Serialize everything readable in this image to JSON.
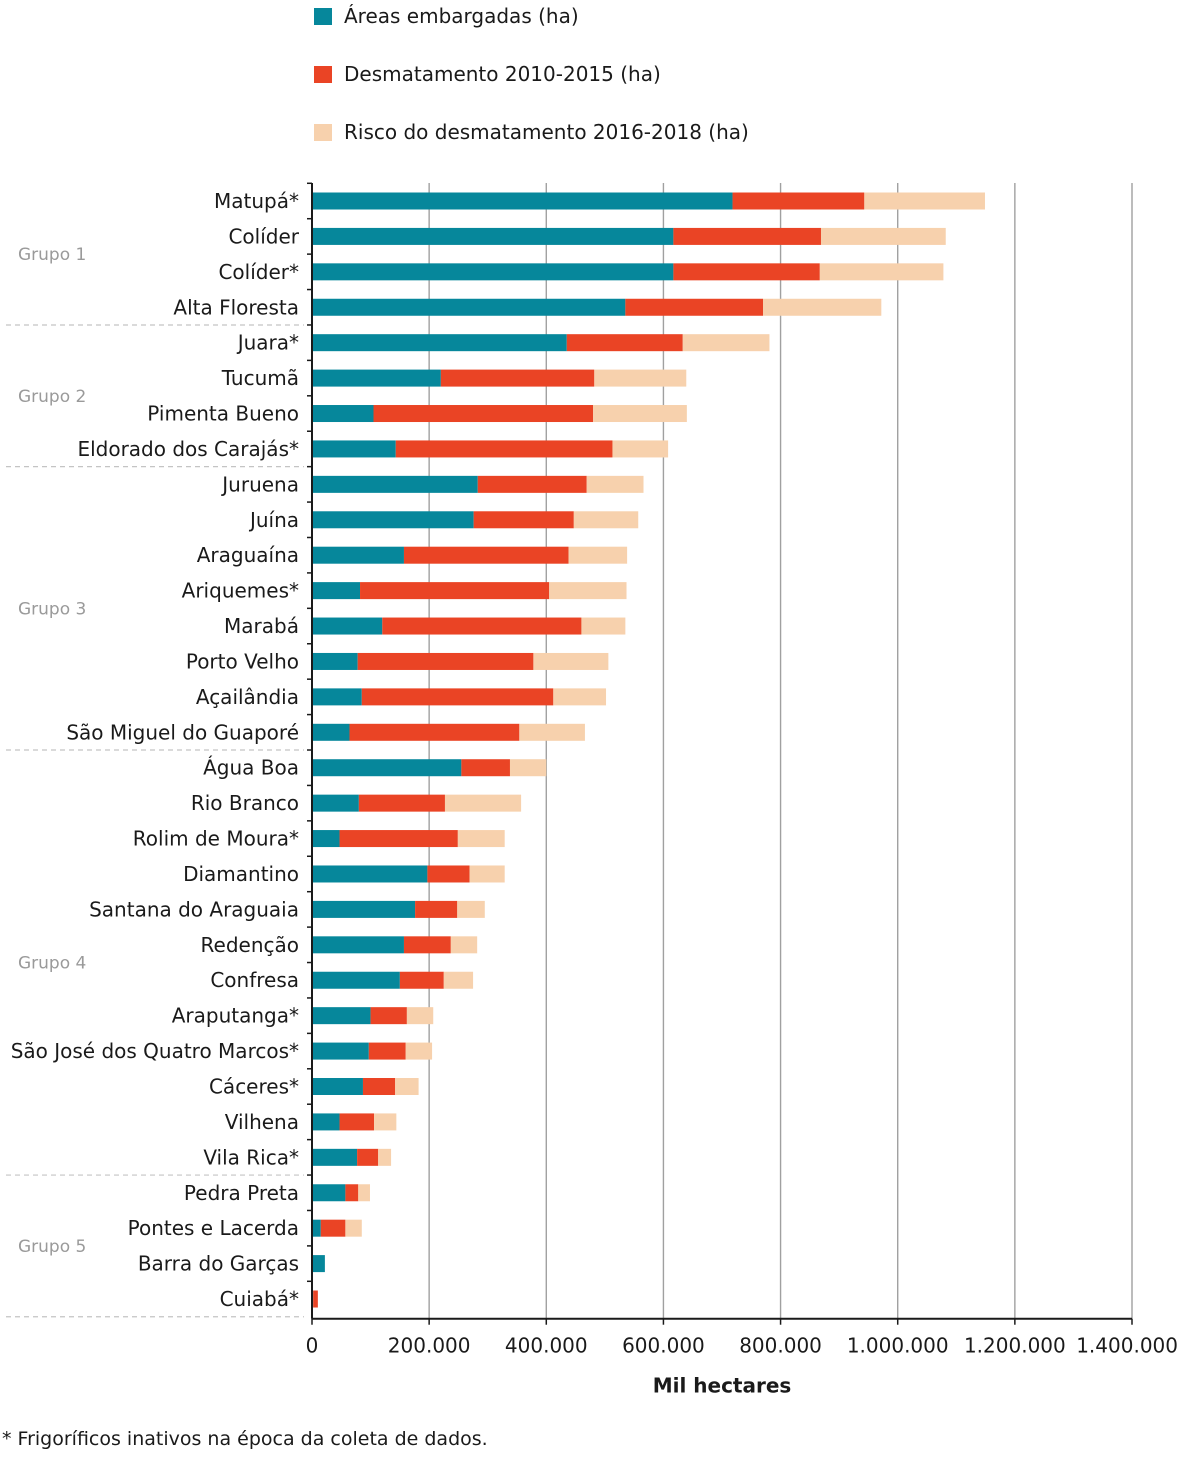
{
  "chart_data": {
    "type": "bar",
    "orientation": "horizontal",
    "stacked": true,
    "title": "",
    "xlabel": "Mil hectares",
    "ylabel": "",
    "xlim": [
      0,
      1400000
    ],
    "xticks": [
      0,
      200000,
      400000,
      600000,
      800000,
      1000000,
      1200000,
      1400000
    ],
    "xtick_labels": [
      "0",
      "200.000",
      "400.000",
      "600.000",
      "800.000",
      "1.000.000",
      "1.200.000",
      "1.400.000"
    ],
    "grid": "vertical",
    "legend_position": "top",
    "categories": [
      "Matupá*",
      "Colíder",
      "Colíder*",
      "Alta Floresta",
      "Juara*",
      "Tucumã",
      "Pimenta Bueno",
      "Eldorado dos Carajás*",
      "Juruena",
      "Juína",
      "Araguaína",
      "Ariquemes*",
      "Marabá",
      "Porto Velho",
      "Açailândia",
      "São Miguel do Guaporé",
      "Água Boa",
      "Rio Branco",
      "Rolim de Moura*",
      "Diamantino",
      "Santana do Araguaia",
      "Redenção",
      "Confresa",
      "Araputanga*",
      "São José dos Quatro Marcos*",
      "Cáceres*",
      "Vilhena",
      "Vila Rica*",
      "Pedra Preta",
      "Pontes e Lacerda",
      "Barra do Garças",
      "Cuiabá*"
    ],
    "series": [
      {
        "name": "Áreas embargadas (ha)",
        "color": "#06879b",
        "values": [
          718000,
          617000,
          617000,
          535000,
          435000,
          220000,
          105000,
          143000,
          283000,
          276000,
          157000,
          82000,
          120000,
          78000,
          85000,
          64000,
          255000,
          80000,
          47000,
          197000,
          176000,
          157000,
          150000,
          100000,
          97000,
          87000,
          47000,
          77000,
          57000,
          15000,
          22000,
          2000
        ]
      },
      {
        "name": "Desmatamento 2010-2015 (ha)",
        "color": "#ea4425",
        "values": [
          225000,
          252000,
          250000,
          235000,
          198000,
          262000,
          375000,
          370000,
          186000,
          171000,
          281000,
          323000,
          340000,
          300000,
          327000,
          290000,
          83000,
          147000,
          202000,
          72000,
          72000,
          80000,
          75000,
          62000,
          63000,
          55000,
          59000,
          36000,
          22000,
          42000,
          0,
          8000
        ]
      },
      {
        "name": "Risco do desmatamento 2016-2018 (ha)",
        "color": "#f7d1ad",
        "values": [
          206000,
          213000,
          211000,
          202000,
          148000,
          157000,
          160000,
          95000,
          97000,
          110000,
          100000,
          132000,
          75000,
          128000,
          90000,
          112000,
          62000,
          130000,
          80000,
          60000,
          47000,
          45000,
          50000,
          45000,
          45000,
          40000,
          38000,
          22000,
          20000,
          28000,
          0,
          0
        ]
      }
    ],
    "groups": [
      {
        "label": "Grupo 1",
        "start": 0,
        "end": 3
      },
      {
        "label": "Grupo 2",
        "start": 4,
        "end": 7
      },
      {
        "label": "Grupo 3",
        "start": 8,
        "end": 15
      },
      {
        "label": "Grupo 4",
        "start": 16,
        "end": 27
      },
      {
        "label": "Grupo 5",
        "start": 28,
        "end": 31
      }
    ]
  },
  "footnote": "* Frigoríficos inativos na época da coleta de dados."
}
